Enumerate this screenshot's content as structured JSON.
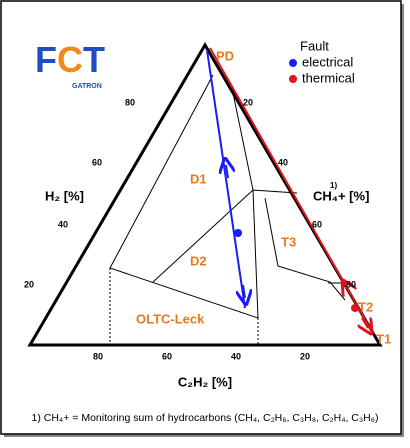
{
  "logo": {
    "letters": [
      "F",
      "C",
      "T"
    ],
    "sub": "GATRON"
  },
  "legend": {
    "title": "Fault",
    "items": [
      "electrical",
      "thermical"
    ]
  },
  "axes": {
    "left": "H₂ [%]",
    "right": "CH₄+ [%]",
    "right_sup": "1)",
    "bottom": "C₂H₂ [%]"
  },
  "ticks": {
    "left": [
      "80",
      "60",
      "40",
      "20"
    ],
    "right": [
      "20",
      "40",
      "60",
      "80"
    ],
    "bottom": [
      "80",
      "60",
      "40",
      "20"
    ]
  },
  "zones": [
    "PD",
    "D1",
    "D2",
    "T3",
    "T2",
    "T1",
    "OLTC-Leck"
  ],
  "footnote": "1) CH₄+ = Monitoring sum of hydrocarbons (CH₄, C₂H₆, C₃H₈, C₂H₄, C₃H₆)"
}
